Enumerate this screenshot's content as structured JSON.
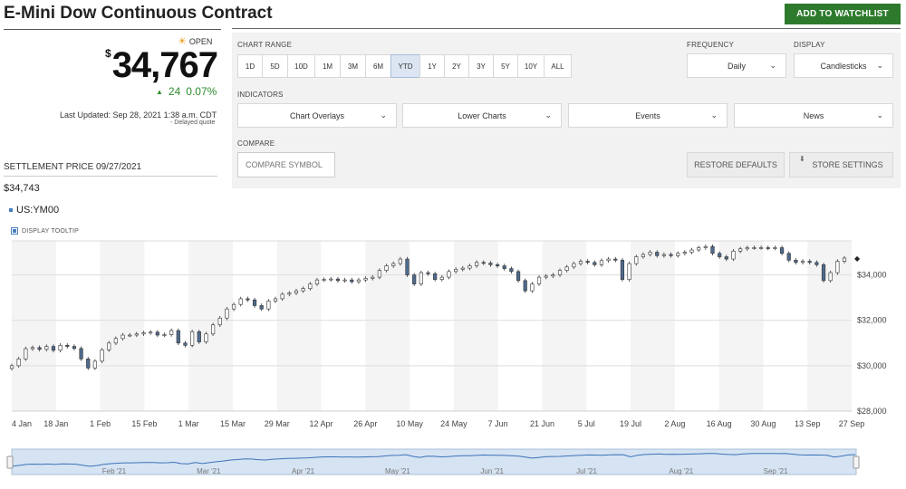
{
  "header": {
    "title": "E-Mini Dow Continuous Contract",
    "watchlist_label": "ADD TO WATCHLIST",
    "accent": "#2d7a2d"
  },
  "quote": {
    "status_icon": "sun-icon",
    "status": "OPEN",
    "currency": "$",
    "price": "34,767",
    "change": "24",
    "change_pct": "0.07%",
    "change_color": "#2e8b2e",
    "last_updated": "Last Updated: Sep 28, 2021 1:38 a.m. CDT",
    "delayed": "Delayed quote",
    "settlement_label": "SETTLEMENT PRICE 09/27/2021",
    "settlement_value": "$34,743",
    "symbol": "US:YM00",
    "tooltip_label": "DISPLAY TOOLTIP"
  },
  "controls": {
    "chart_range_label": "CHART RANGE",
    "ranges": [
      "1D",
      "5D",
      "10D",
      "1M",
      "3M",
      "6M",
      "YTD",
      "1Y",
      "2Y",
      "3Y",
      "5Y",
      "10Y",
      "ALL"
    ],
    "active_range": "YTD",
    "frequency_label": "FREQUENCY",
    "frequency_value": "Daily",
    "display_label": "DISPLAY",
    "display_value": "Candlesticks",
    "indicators_label": "INDICATORS",
    "indicators": [
      "Chart Overlays",
      "Lower Charts",
      "Events",
      "News"
    ],
    "compare_label": "COMPARE",
    "compare_placeholder": "COMPARE SYMBOL",
    "restore_label": "RESTORE DEFAULTS",
    "store_label": "STORE SETTINGS"
  },
  "chart_data": {
    "type": "candlestick",
    "symbol": "US:YM00",
    "ylim": [
      28000,
      35500
    ],
    "yticks": [
      "$28,000",
      "$30,000",
      "$32,000",
      "$34,000"
    ],
    "ytick_values": [
      28000,
      30000,
      32000,
      34000
    ],
    "x_range": [
      "2021-01-04",
      "2021-09-27"
    ],
    "xticks": [
      "4 Jan",
      "18 Jan",
      "1 Feb",
      "15 Feb",
      "1 Mar",
      "15 Mar",
      "29 Mar",
      "12 Apr",
      "26 Apr",
      "10 May",
      "24 May",
      "7 Jun",
      "21 Jun",
      "5 Jul",
      "19 Jul",
      "2 Aug",
      "16 Aug",
      "30 Aug",
      "13 Sep",
      "27 Sep"
    ],
    "nav_xticks": [
      "Feb '21",
      "Mar '21",
      "Apr '21",
      "May '21",
      "Jun '21",
      "Jul '21",
      "Aug '21",
      "Sep '21"
    ],
    "grid": true,
    "up_color": "#ffffff",
    "down_color": "#4f6b8f",
    "nav_line_color": "#3f72b8",
    "nav_fill_color": "#d5e3f3",
    "closes": [
      30000,
      30300,
      30750,
      30800,
      30720,
      30850,
      30680,
      30900,
      30850,
      30760,
      30300,
      29900,
      30200,
      30700,
      31000,
      31200,
      31350,
      31350,
      31400,
      31450,
      31480,
      31350,
      31370,
      31550,
      31000,
      30900,
      31500,
      31050,
      31400,
      31800,
      32100,
      32500,
      32700,
      32950,
      32900,
      32650,
      32500,
      32850,
      32950,
      33150,
      33200,
      33300,
      33400,
      33600,
      33780,
      33800,
      33820,
      33750,
      33780,
      33700,
      33780,
      33850,
      33900,
      34200,
      34400,
      34500,
      34700,
      34000,
      33600,
      34100,
      34050,
      33800,
      33900,
      34150,
      34250,
      34300,
      34400,
      34550,
      34520,
      34450,
      34400,
      34280,
      34150,
      33750,
      33300,
      33600,
      33900,
      33950,
      34000,
      34200,
      34350,
      34500,
      34600,
      34550,
      34450,
      34630,
      34700,
      34650,
      33800,
      34500,
      34800,
      34900,
      35000,
      34850,
      34900,
      34850,
      34950,
      35000,
      35100,
      35200,
      35250,
      34950,
      34800,
      34700,
      35050,
      35150,
      35200,
      35200,
      35200,
      35180,
      35200,
      34950,
      34650,
      34550,
      34600,
      34550,
      34450,
      33750,
      34100,
      34600,
      34743
    ]
  },
  "navigator": {
    "left_handle_icon": "drag-handle-icon",
    "right_handle_icon": "drag-handle-icon"
  }
}
